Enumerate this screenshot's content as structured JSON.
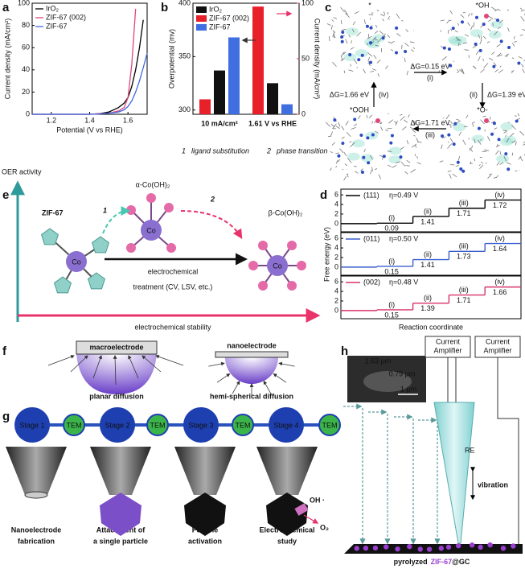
{
  "panel_labels": [
    "a",
    "b",
    "c",
    "d",
    "e",
    "f",
    "g",
    "h"
  ],
  "chart_data": [
    {
      "type": "line",
      "xlabel": "Potential (V vs RHE)",
      "ylabel": "Current density (mA/cm²)",
      "x": [
        1.1,
        1.2,
        1.3,
        1.4,
        1.45,
        1.5,
        1.55,
        1.58,
        1.6,
        1.62,
        1.64,
        1.66,
        1.68,
        1.7
      ],
      "xlim": [
        1.1,
        1.7
      ],
      "xticks": [
        1.2,
        1.4,
        1.6
      ],
      "ylim": [
        0,
        100
      ],
      "yticks": [
        0,
        20,
        40,
        60,
        80,
        100
      ],
      "legend": "upper left",
      "series": [
        {
          "name": "IrO₂",
          "color": "#000000",
          "values": [
            0,
            0,
            0,
            0,
            0.5,
            2,
            6,
            10,
            15,
            25,
            40,
            60,
            85,
            null
          ]
        },
        {
          "name": "ZIF-67 (002)",
          "color": "#e0457b",
          "values": [
            0,
            0,
            0,
            0,
            0.5,
            1,
            3,
            6,
            15,
            45,
            95,
            null,
            null,
            null
          ]
        },
        {
          "name": "ZIF-67",
          "color": "#4169e1",
          "values": [
            0,
            0,
            0,
            0,
            0.3,
            1,
            2,
            4,
            7,
            12,
            20,
            30,
            42,
            55
          ]
        }
      ]
    },
    {
      "type": "bar",
      "ylabel": "Overpotential (mv)",
      "y2label": "Current density (mA/cm²)",
      "categories": [
        "10 mA/cm²",
        "1.61 V vs RHE"
      ],
      "category_axes": [
        "y",
        "y2"
      ],
      "ylim": [
        296,
        400
      ],
      "yticks": [
        300,
        350,
        400
      ],
      "y2lim": [
        0,
        100
      ],
      "y2ticks": [
        0,
        50,
        100
      ],
      "y2color": "#e8336b",
      "legend": "upper left",
      "series": [
        {
          "name": "IrO₂",
          "color": "#111111",
          "values": [
            337,
            28
          ]
        },
        {
          "name": "ZIF-67 (002)",
          "color": "#e8202a",
          "values": [
            310,
            97
          ]
        },
        {
          "name": "ZIF-67",
          "color": "#3f6fe0",
          "values": [
            368,
            9
          ]
        }
      ]
    },
    {
      "type": "step",
      "label": "(111)",
      "annotation": "η=0.49 V",
      "color": "#000000",
      "steps": [
        0.09,
        1.41,
        1.71,
        1.72
      ],
      "step_labels": [
        "(i)",
        "(ii)",
        "(iii)",
        "(iv)"
      ],
      "ylim": [
        -1.7,
        7.2
      ],
      "yticks": [
        0,
        2,
        4,
        6
      ]
    },
    {
      "type": "step",
      "label": "(011)",
      "annotation": "η=0.50 V",
      "color": "#3a5fcd",
      "steps": [
        0.15,
        1.41,
        1.73,
        1.64
      ],
      "step_labels": [
        "(i)",
        "(ii)",
        "(iii)",
        "(iv)"
      ],
      "ylim": [
        -1.7,
        7.2
      ],
      "yticks": [
        0,
        2,
        4,
        6
      ]
    },
    {
      "type": "step",
      "label": "(002)",
      "annotation": "η=0.48 V",
      "color": "#d6336c",
      "steps": [
        0.15,
        1.39,
        1.71,
        1.66
      ],
      "step_labels": [
        "(i)",
        "(ii)",
        "(iii)",
        "(iv)"
      ],
      "ylim": [
        -1.7,
        7.2
      ],
      "yticks": [
        0,
        2,
        4,
        6
      ]
    }
  ],
  "panel_c": {
    "states": [
      "*",
      "*OH",
      "*OOH",
      "*O-"
    ],
    "steps": [
      {
        "energy": "ΔG=0.15 eV",
        "label": "(i)"
      },
      {
        "energy": "ΔG=1.39 eV",
        "label": "(ii)"
      },
      {
        "energy": "ΔG=1.71 eV",
        "label": "(iii)"
      },
      {
        "energy": "ΔG=1.66 eV",
        "label": "(iv)"
      }
    ]
  },
  "panel_d": {
    "ylabel": "Free energy (eV)",
    "xlabel": "Reaction coordinate"
  },
  "process_legend": [
    {
      "number": "1",
      "label": "ligand substitution"
    },
    {
      "number": "2",
      "label": "phase transition"
    }
  ],
  "panel_e": {
    "y_axis": "OER activity",
    "x_axis": "electrochemical stability",
    "start": "ZIF-67",
    "intermediate": "α-Co(OH)₂",
    "product": "β-Co(OH)₂",
    "metal": "Co",
    "arrow_1": "1",
    "arrow_2": "2",
    "treatment": [
      "electrochemical",
      "treatment (CV, LSV, etc.)"
    ]
  },
  "panel_f": {
    "macro": "macroelectrode",
    "macro_caption": "planar diffusion",
    "nano": "nanoelectrode",
    "nano_caption": "hemi-spherical diffusion"
  },
  "panel_g": {
    "stages": [
      "Stage 1",
      "TEM",
      "Stage 2",
      "TEM",
      "Stage 3",
      "TEM",
      "Stage 4",
      "TEM"
    ],
    "captions": [
      [
        "Nanoelectrode",
        "fabrication"
      ],
      [
        "Attachment of",
        "a single particle"
      ],
      [
        "Particle",
        "activation"
      ],
      [
        "Electrochemical",
        "study"
      ]
    ],
    "species": [
      "OH ·",
      "O₂"
    ]
  },
  "panel_h": {
    "amplifiers": [
      [
        "Current",
        "Amplifier"
      ],
      [
        "Current",
        "Amplifier"
      ]
    ],
    "scale_1": "1.63 μm",
    "scale_2": "0.79 μm",
    "scale_bar": "1 μm",
    "electrode": "RE",
    "motion": "vibration",
    "caption": {
      "prefix": "pyrolyzed",
      "highlight": "ZIF-67",
      "suffix": "@GC"
    }
  }
}
